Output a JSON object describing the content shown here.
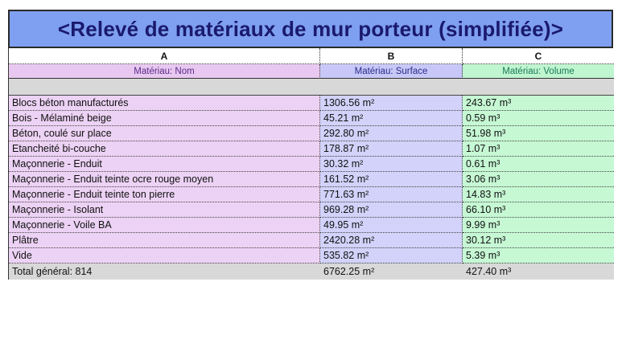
{
  "schedule": {
    "title": "<Relevé de matériaux de mur porteur (simplifiée)>",
    "column_letters": [
      "A",
      "B",
      "C"
    ],
    "headers": [
      "Matériau: Nom",
      "Matériau: Surface",
      "Matériau: Volume"
    ],
    "rows": [
      {
        "name": "Blocs béton manufacturés",
        "surface": "1306.56 m²",
        "volume": "243.67 m³"
      },
      {
        "name": "Bois - Mélaminé beige",
        "surface": "45.21 m²",
        "volume": "0.59 m³"
      },
      {
        "name": "Béton, coulé sur place",
        "surface": "292.80 m²",
        "volume": "51.98 m³"
      },
      {
        "name": "Etancheité bi-couche",
        "surface": "178.87 m²",
        "volume": "1.07 m³"
      },
      {
        "name": "Maçonnerie - Enduit",
        "surface": "30.32 m²",
        "volume": "0.61 m³"
      },
      {
        "name": "Maçonnerie - Enduit teinte ocre rouge moyen",
        "surface": "161.52 m²",
        "volume": "3.06 m³"
      },
      {
        "name": "Maçonnerie - Enduit teinte ton pierre",
        "surface": "771.63 m²",
        "volume": "14.83 m³"
      },
      {
        "name": "Maçonnerie - Isolant",
        "surface": "969.28 m²",
        "volume": "66.10 m³"
      },
      {
        "name": "Maçonnerie - Voile BA",
        "surface": "49.95 m²",
        "volume": "9.99 m³"
      },
      {
        "name": "Plâtre",
        "surface": "2420.28 m²",
        "volume": "30.12 m³"
      },
      {
        "name": "Vide",
        "surface": "535.82 m²",
        "volume": "5.39 m³"
      }
    ],
    "total": {
      "label": "Total général: 814",
      "surface": "6762.25 m²",
      "volume": "427.40 m³"
    }
  },
  "colors": {
    "title_background": "#7f9ff0",
    "title_text": "#1a1a6e",
    "name_column": "#ecd2f4",
    "surface_column": "#d2d2fa",
    "volume_column": "#c6f8d4",
    "group_row": "#d8d8d8"
  }
}
